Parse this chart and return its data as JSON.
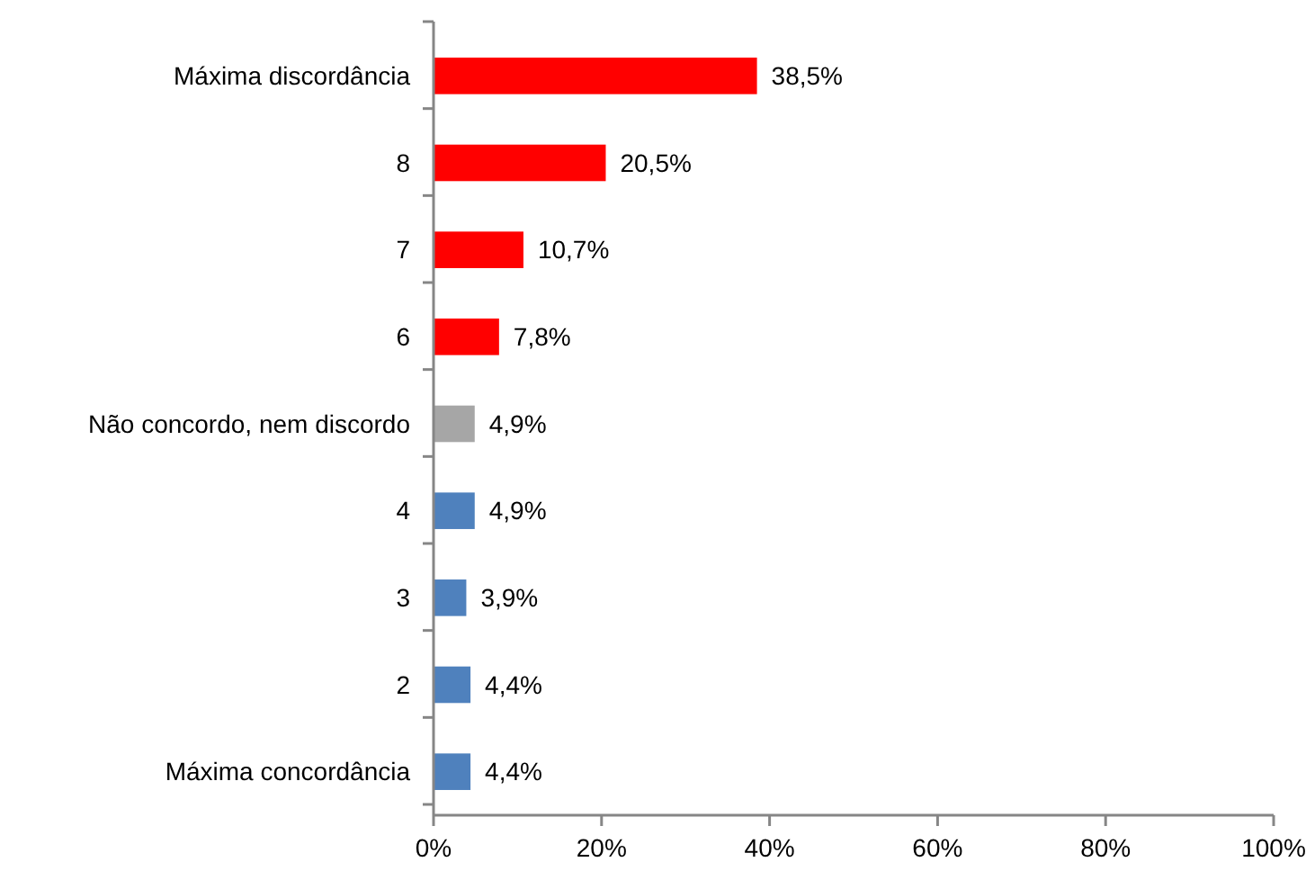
{
  "chart_data": {
    "type": "bar",
    "orientation": "horizontal",
    "categories": [
      "Máxima discordância",
      "8",
      "7",
      "6",
      "Não concordo, nem discordo",
      "4",
      "3",
      "2",
      "Máxima concordância"
    ],
    "values": [
      38.5,
      20.5,
      10.7,
      7.8,
      4.9,
      4.9,
      3.9,
      4.4,
      4.4
    ],
    "colors": [
      "#ff0000",
      "#ff0000",
      "#ff0000",
      "#ff0000",
      "#a6a6a6",
      "#4f81bd",
      "#4f81bd",
      "#4f81bd",
      "#4f81bd"
    ],
    "value_labels": [
      "38,5%",
      "20,5%",
      "10,7%",
      "7,8%",
      "4,9%",
      "4,9%",
      "3,9%",
      "4,4%",
      "4,4%"
    ],
    "xlim": [
      0,
      100
    ],
    "xticks": [
      {
        "value": 0,
        "label": "0%"
      },
      {
        "value": 20,
        "label": "20%"
      },
      {
        "value": 40,
        "label": "40%"
      },
      {
        "value": 60,
        "label": "60%"
      },
      {
        "value": 80,
        "label": "80%"
      },
      {
        "value": 100,
        "label": "100%"
      }
    ],
    "grid": false
  }
}
